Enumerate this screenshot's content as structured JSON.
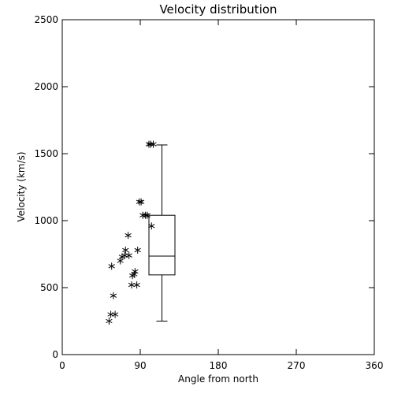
{
  "chart_data": {
    "type": "scatter",
    "title": "Velocity distribution",
    "xlabel": "Angle from north",
    "ylabel": "Velocity (km/s)",
    "xlim": [
      0,
      360
    ],
    "ylim": [
      0,
      2500
    ],
    "x_ticks": [
      0,
      90,
      180,
      270,
      360
    ],
    "y_ticks": [
      0,
      500,
      1000,
      1500,
      2000,
      2500
    ],
    "marker": "asterisk",
    "grid": false,
    "points": [
      {
        "x": 54,
        "y": 250
      },
      {
        "x": 56,
        "y": 300
      },
      {
        "x": 61,
        "y": 300
      },
      {
        "x": 59,
        "y": 440
      },
      {
        "x": 57,
        "y": 660
      },
      {
        "x": 67,
        "y": 700
      },
      {
        "x": 69,
        "y": 730
      },
      {
        "x": 72,
        "y": 740
      },
      {
        "x": 73,
        "y": 780
      },
      {
        "x": 77,
        "y": 740
      },
      {
        "x": 76,
        "y": 890
      },
      {
        "x": 80,
        "y": 520
      },
      {
        "x": 81,
        "y": 590
      },
      {
        "x": 83,
        "y": 600
      },
      {
        "x": 84,
        "y": 620
      },
      {
        "x": 86,
        "y": 520
      },
      {
        "x": 87,
        "y": 780
      },
      {
        "x": 89,
        "y": 1140
      },
      {
        "x": 91,
        "y": 1140
      },
      {
        "x": 93,
        "y": 1040
      },
      {
        "x": 96,
        "y": 1040
      },
      {
        "x": 98,
        "y": 1040
      },
      {
        "x": 100,
        "y": 1570
      },
      {
        "x": 102,
        "y": 1570
      },
      {
        "x": 105,
        "y": 1570
      },
      {
        "x": 103,
        "y": 960
      }
    ],
    "boxplot": {
      "x_center": 115,
      "x_halfwidth": 15,
      "min": 250,
      "q1": 595,
      "median": 735,
      "q3": 1040,
      "max": 1565
    }
  }
}
